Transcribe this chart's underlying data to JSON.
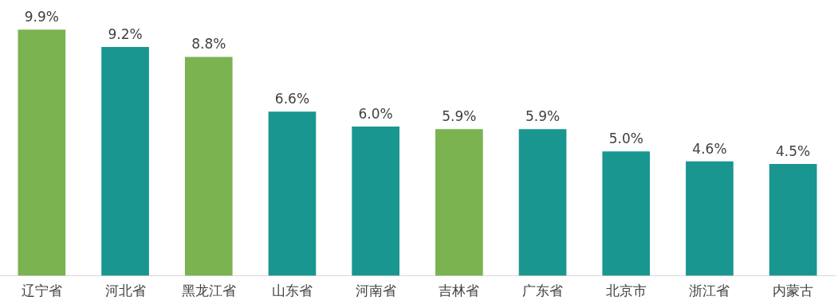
{
  "chart_data": {
    "type": "bar",
    "categories": [
      "辽宁省",
      "河北省",
      "黑龙江省",
      "山东省",
      "河南省",
      "吉林省",
      "广东省",
      "北京市",
      "浙江省",
      "内蒙古"
    ],
    "values": [
      9.9,
      9.2,
      8.8,
      6.6,
      6.0,
      5.9,
      5.9,
      5.0,
      4.6,
      4.5
    ],
    "colors": [
      "#7ab350",
      "#1a9690",
      "#7ab350",
      "#1a9690",
      "#1a9690",
      "#7ab350",
      "#1a9690",
      "#1a9690",
      "#1a9690",
      "#1a9690"
    ],
    "value_labels": [
      "9.9%",
      "9.2%",
      "8.8%",
      "6.6%",
      "6.0%",
      "5.9%",
      "5.9%",
      "5.0%",
      "4.6%",
      "4.5%"
    ],
    "grid": false,
    "legend": false
  }
}
